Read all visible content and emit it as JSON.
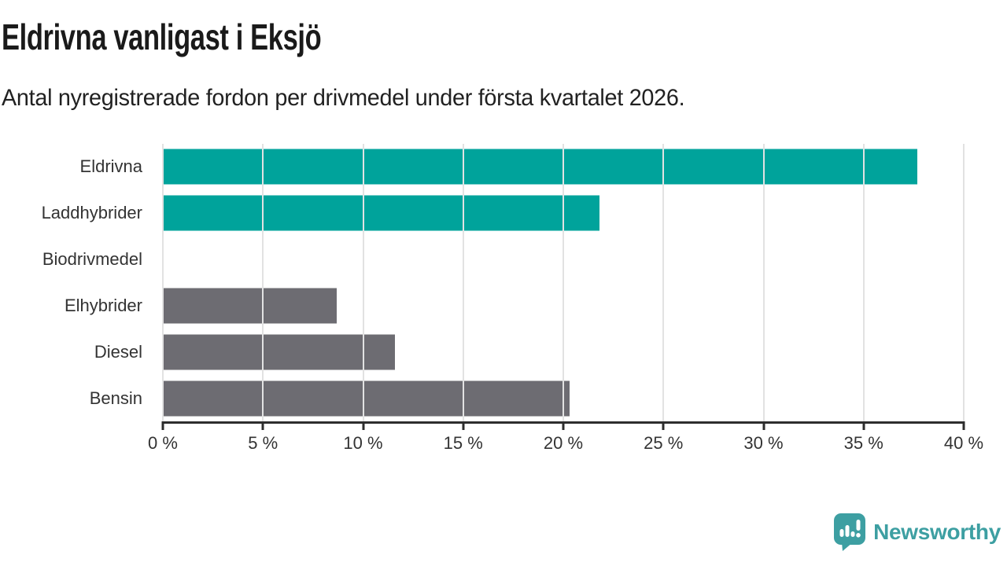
{
  "header": {
    "title": "Eldrivna vanligast i Eksjö",
    "subtitle": "Antal nyregistrerade fordon per drivmedel under första kvartalet 2026."
  },
  "chart_data": {
    "type": "bar",
    "orientation": "horizontal",
    "title": "Eldrivna vanligast i Eksjö",
    "subtitle": "Antal nyregistrerade fordon per drivmedel under första kvartalet 2026.",
    "categories": [
      "Eldrivna",
      "Laddhybrider",
      "Biodrivmedel",
      "Elhybrider",
      "Diesel",
      "Bensin"
    ],
    "values": [
      37.7,
      21.8,
      0,
      8.7,
      11.6,
      20.3
    ],
    "unit": "%",
    "bar_colors": [
      "#00a39b",
      "#00a39b",
      "#6d6c72",
      "#6d6c72",
      "#6d6c72",
      "#6d6c72"
    ],
    "xlabel": "",
    "ylabel": "",
    "xlim": [
      0,
      40
    ],
    "x_ticks": [
      0,
      5,
      10,
      15,
      20,
      25,
      30,
      35,
      40
    ],
    "x_tick_labels": [
      "0 %",
      "5 %",
      "10 %",
      "15 %",
      "20 %",
      "25 %",
      "30 %",
      "35 %",
      "40 %"
    ],
    "grid": "vertical-gridlines-on-top-of-bars",
    "legend": "none"
  },
  "colors": {
    "teal_bar": "#00a39b",
    "gray_bar": "#6d6c72",
    "gridline": "#e2e2e2",
    "axis": "#2d2d2d",
    "text": "#333333",
    "title_text": "#1a1a1a",
    "brand_teal": "#3d9fa2"
  },
  "footer": {
    "brand": "Newsworthy"
  }
}
